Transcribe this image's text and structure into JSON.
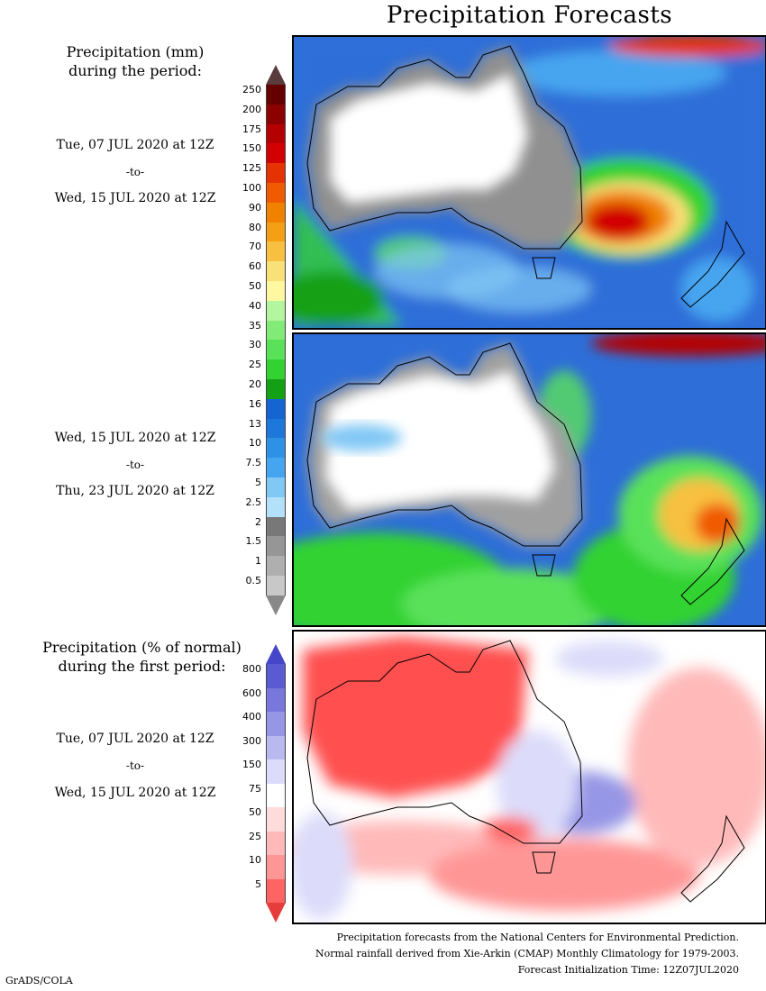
{
  "title": "Precipitation Forecasts",
  "panel1_label": {
    "heading_line1": "Precipitation (mm)",
    "heading_line2": "during the period:",
    "start": "Tue, 07 JUL 2020 at 12Z",
    "to": "-to-",
    "end": "Wed, 15 JUL 2020 at 12Z"
  },
  "panel2_label": {
    "start": "Wed, 15 JUL 2020 at 12Z",
    "to": "-to-",
    "end": "Thu, 23 JUL 2020 at 12Z"
  },
  "panel3_label": {
    "heading_line1": "Precipitation (% of normal)",
    "heading_line2": "during the first period:",
    "start": "Tue, 07 JUL 2020 at 12Z",
    "to": "-to-",
    "end": "Wed, 15 JUL 2020 at 12Z"
  },
  "precip_scale": {
    "ticks": [
      "250",
      "200",
      "175",
      "150",
      "125",
      "100",
      "90",
      "80",
      "70",
      "60",
      "50",
      "40",
      "35",
      "30",
      "25",
      "20",
      "16",
      "13",
      "10",
      "7.5",
      "5",
      "2.5",
      "2",
      "1.5",
      "1",
      "0.5"
    ],
    "colors": [
      "#640000",
      "#8c0000",
      "#b40000",
      "#d20000",
      "#e63200",
      "#f05a00",
      "#f08200",
      "#f5a014",
      "#f8c040",
      "#fae078",
      "#fff8a0",
      "#b4f5a0",
      "#82eb78",
      "#5ae15a",
      "#32d232",
      "#14a014",
      "#1464d2",
      "#1e78dc",
      "#2d91e6",
      "#46a5f0",
      "#82c8f5",
      "#b4e1fa",
      "#787878",
      "#969696",
      "#afafaf",
      "#c8c8c8"
    ],
    "top_arrow_color": "#5a3c3c",
    "bottom_arrow_color": "#ffffff"
  },
  "normal_scale": {
    "ticks": [
      "800",
      "600",
      "400",
      "300",
      "150",
      "75",
      "50",
      "25",
      "10",
      "5"
    ],
    "colors": [
      "#5a5ad2",
      "#7878dc",
      "#9696e6",
      "#b9b9f0",
      "#dcdcfa",
      "#ffffff",
      "#ffdcdc",
      "#ffb9b9",
      "#ff9696",
      "#ff6464"
    ],
    "top_arrow_color": "#4646c8",
    "bottom_arrow_color": "#e63c3c"
  },
  "footer": {
    "line1": "Precipitation forecasts from the National Centers for Environmental Prediction.",
    "line2": "Normal rainfall derived from Xie-Arkin (CMAP) Monthly Climatology for 1979-2003.",
    "line3": "Forecast Initialization Time: 12Z07JUL2020"
  },
  "credit": "GrADS/COLA"
}
